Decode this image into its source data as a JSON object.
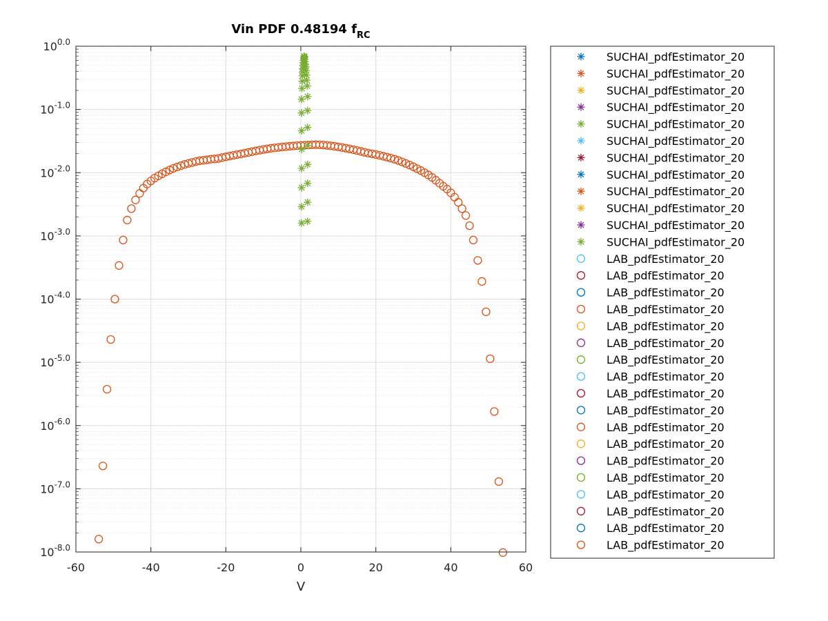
{
  "chart_data": {
    "type": "scatter",
    "title": "Vin PDF 0.48194 f",
    "title_subscript": "RC",
    "xlabel": "V",
    "ylabel": "",
    "xlim": [
      -60,
      60
    ],
    "ylim": [
      1e-08,
      1
    ],
    "yscale": "log",
    "grid": true,
    "minor_grid": true,
    "legend_position": "outside-right",
    "x_ticks": [
      -60,
      -40,
      -20,
      0,
      20,
      40,
      60
    ],
    "x_tick_labels": [
      "-60",
      "-40",
      "-20",
      "0",
      "20",
      "40",
      "60"
    ],
    "y_ticks": [
      {
        "base": "10",
        "exp": "0.0",
        "value": 1
      },
      {
        "base": "10",
        "exp": "-1.0",
        "value": 0.1
      },
      {
        "base": "10",
        "exp": "-2.0",
        "value": 0.01
      },
      {
        "base": "10",
        "exp": "-3.0",
        "value": 0.001
      },
      {
        "base": "10",
        "exp": "-4.0",
        "value": 0.0001
      },
      {
        "base": "10",
        "exp": "-5.0",
        "value": 1e-05
      },
      {
        "base": "10",
        "exp": "-6.0",
        "value": 1e-06
      },
      {
        "base": "10",
        "exp": "-7.0",
        "value": 1e-07
      },
      {
        "base": "10",
        "exp": "-8.0",
        "value": 1e-08
      }
    ],
    "legend": [
      {
        "label": "SUCHAI_pdfEstimator_20",
        "marker": "star",
        "color": "#0072BD"
      },
      {
        "label": "SUCHAI_pdfEstimator_20",
        "marker": "star",
        "color": "#D95319"
      },
      {
        "label": "SUCHAI_pdfEstimator_20",
        "marker": "star",
        "color": "#EDB120"
      },
      {
        "label": "SUCHAI_pdfEstimator_20",
        "marker": "star",
        "color": "#7E2F8E"
      },
      {
        "label": "SUCHAI_pdfEstimator_20",
        "marker": "star",
        "color": "#77AC30"
      },
      {
        "label": "SUCHAI_pdfEstimator_20",
        "marker": "star",
        "color": "#4DBEEE"
      },
      {
        "label": "SUCHAI_pdfEstimator_20",
        "marker": "star",
        "color": "#A2142F"
      },
      {
        "label": "SUCHAI_pdfEstimator_20",
        "marker": "star",
        "color": "#0072BD"
      },
      {
        "label": "SUCHAI_pdfEstimator_20",
        "marker": "star",
        "color": "#D95319"
      },
      {
        "label": "SUCHAI_pdfEstimator_20",
        "marker": "star",
        "color": "#EDB120"
      },
      {
        "label": "SUCHAI_pdfEstimator_20",
        "marker": "star",
        "color": "#7E2F8E"
      },
      {
        "label": "SUCHAI_pdfEstimator_20",
        "marker": "star",
        "color": "#77AC30"
      },
      {
        "label": "LAB_pdfEstimator_20",
        "marker": "circle",
        "color": "#4DBEEE"
      },
      {
        "label": "LAB_pdfEstimator_20",
        "marker": "circle",
        "color": "#A2142F"
      },
      {
        "label": "LAB_pdfEstimator_20",
        "marker": "circle",
        "color": "#0072BD"
      },
      {
        "label": "LAB_pdfEstimator_20",
        "marker": "circle",
        "color": "#D95319"
      },
      {
        "label": "LAB_pdfEstimator_20",
        "marker": "circle",
        "color": "#EDB120"
      },
      {
        "label": "LAB_pdfEstimator_20",
        "marker": "circle",
        "color": "#7E2F8E"
      },
      {
        "label": "LAB_pdfEstimator_20",
        "marker": "circle",
        "color": "#77AC30"
      },
      {
        "label": "LAB_pdfEstimator_20",
        "marker": "circle",
        "color": "#4DBEEE"
      },
      {
        "label": "LAB_pdfEstimator_20",
        "marker": "circle",
        "color": "#A2142F"
      },
      {
        "label": "LAB_pdfEstimator_20",
        "marker": "circle",
        "color": "#0072BD"
      },
      {
        "label": "LAB_pdfEstimator_20",
        "marker": "circle",
        "color": "#D95319"
      },
      {
        "label": "LAB_pdfEstimator_20",
        "marker": "circle",
        "color": "#EDB120"
      },
      {
        "label": "LAB_pdfEstimator_20",
        "marker": "circle",
        "color": "#7E2F8E"
      },
      {
        "label": "LAB_pdfEstimator_20",
        "marker": "circle",
        "color": "#77AC30"
      },
      {
        "label": "LAB_pdfEstimator_20",
        "marker": "circle",
        "color": "#4DBEEE"
      },
      {
        "label": "LAB_pdfEstimator_20",
        "marker": "circle",
        "color": "#A2142F"
      },
      {
        "label": "LAB_pdfEstimator_20",
        "marker": "circle",
        "color": "#0072BD"
      },
      {
        "label": "LAB_pdfEstimator_20",
        "marker": "circle",
        "color": "#D95319"
      }
    ],
    "series": [
      {
        "marker": "star",
        "color": "#77AC30",
        "points": [
          [
            0.2,
            0.0016
          ],
          [
            1.8,
            0.0017
          ],
          [
            0.2,
            0.0029
          ],
          [
            1.8,
            0.0034
          ],
          [
            0.2,
            0.0058
          ],
          [
            1.8,
            0.0068
          ],
          [
            0.2,
            0.0117
          ],
          [
            1.8,
            0.0135
          ],
          [
            0.2,
            0.0235
          ],
          [
            1.8,
            0.027
          ],
          [
            0.2,
            0.046
          ],
          [
            1.8,
            0.052
          ],
          [
            0.2,
            0.088
          ],
          [
            1.8,
            0.096
          ],
          [
            0.2,
            0.145
          ],
          [
            1.8,
            0.16
          ],
          [
            0.3,
            0.215
          ],
          [
            1.7,
            0.235
          ],
          [
            0.35,
            0.28
          ],
          [
            1.6,
            0.29
          ],
          [
            0.4,
            0.34
          ],
          [
            1.5,
            0.35
          ],
          [
            0.45,
            0.39
          ],
          [
            1.4,
            0.41
          ],
          [
            0.5,
            0.44
          ],
          [
            1.3,
            0.47
          ],
          [
            0.55,
            0.5
          ],
          [
            1.2,
            0.52
          ],
          [
            0.6,
            0.55
          ],
          [
            1.1,
            0.57
          ],
          [
            0.7,
            0.6
          ],
          [
            1.0,
            0.62
          ],
          [
            0.8,
            0.64
          ],
          [
            0.9,
            0.66
          ],
          [
            1.0,
            0.68
          ],
          [
            0.85,
            0.7
          ]
        ]
      },
      {
        "marker": "circle",
        "color": "#D95319",
        "points": [
          [
            -53.9,
            1.6e-08
          ],
          [
            -52.8,
            2.3e-07
          ],
          [
            -51.7,
            3.75e-06
          ],
          [
            -50.7,
            2.3e-05
          ],
          [
            -49.6,
            0.0001
          ],
          [
            -48.5,
            0.00034
          ],
          [
            -47.4,
            0.00086
          ],
          [
            -46.3,
            0.00178
          ],
          [
            -45.2,
            0.0027
          ],
          [
            -44.1,
            0.0037
          ],
          [
            -43.0,
            0.0047
          ],
          [
            -42.0,
            0.0057
          ],
          [
            -41.0,
            0.0066
          ],
          [
            -40.0,
            0.0074
          ],
          [
            -39.0,
            0.0082
          ],
          [
            -38.0,
            0.0089
          ],
          [
            -37.0,
            0.0096
          ],
          [
            -36.0,
            0.0103
          ],
          [
            -35.0,
            0.011
          ],
          [
            -34.0,
            0.0117
          ],
          [
            -33.0,
            0.0123
          ],
          [
            -32.0,
            0.0129
          ],
          [
            -31.0,
            0.0135
          ],
          [
            -30.0,
            0.014
          ],
          [
            -29.0,
            0.0145
          ],
          [
            -28.0,
            0.015
          ],
          [
            -27.0,
            0.0154
          ],
          [
            -26.0,
            0.0157
          ],
          [
            -25.0,
            0.016
          ],
          [
            -24.0,
            0.0163
          ],
          [
            -23.0,
            0.0165
          ],
          [
            -22.0,
            0.0168
          ],
          [
            -21.0,
            0.0173
          ],
          [
            -20.0,
            0.0178
          ],
          [
            -19.0,
            0.0183
          ],
          [
            -18.0,
            0.0188
          ],
          [
            -17.0,
            0.0193
          ],
          [
            -16.0,
            0.0198
          ],
          [
            -15.0,
            0.0203
          ],
          [
            -14.0,
            0.0209
          ],
          [
            -13.0,
            0.0215
          ],
          [
            -12.0,
            0.0221
          ],
          [
            -11.0,
            0.0227
          ],
          [
            -10.0,
            0.0233
          ],
          [
            -9.0,
            0.0238
          ],
          [
            -8.0,
            0.0243
          ],
          [
            -7.0,
            0.0247
          ],
          [
            -6.0,
            0.0251
          ],
          [
            -5.0,
            0.0255
          ],
          [
            -4.0,
            0.0258
          ],
          [
            -3.0,
            0.0262
          ],
          [
            -2.0,
            0.0265
          ],
          [
            -1.0,
            0.0268
          ],
          [
            0.0,
            0.027
          ],
          [
            1.0,
            0.0272
          ],
          [
            2.0,
            0.0274
          ],
          [
            3.0,
            0.0276
          ],
          [
            4.0,
            0.0277
          ],
          [
            5.0,
            0.0276
          ],
          [
            6.0,
            0.0274
          ],
          [
            7.0,
            0.027
          ],
          [
            8.0,
            0.0266
          ],
          [
            9.0,
            0.0261
          ],
          [
            10.0,
            0.0256
          ],
          [
            11.0,
            0.025
          ],
          [
            12.0,
            0.0244
          ],
          [
            13.0,
            0.0238
          ],
          [
            14.0,
            0.0231
          ],
          [
            15.0,
            0.0224
          ],
          [
            16.0,
            0.0217
          ],
          [
            17.0,
            0.021
          ],
          [
            18.0,
            0.0204
          ],
          [
            19.0,
            0.0199
          ],
          [
            20.0,
            0.0194
          ],
          [
            21.0,
            0.0188
          ],
          [
            22.0,
            0.0182
          ],
          [
            23.0,
            0.0176
          ],
          [
            24.0,
            0.017
          ],
          [
            25.0,
            0.0163
          ],
          [
            26.0,
            0.0156
          ],
          [
            27.0,
            0.0148
          ],
          [
            28.0,
            0.014
          ],
          [
            29.0,
            0.0132
          ],
          [
            30.0,
            0.0124
          ],
          [
            31.0,
            0.0116
          ],
          [
            32.0,
            0.0108
          ],
          [
            33.0,
            0.01
          ],
          [
            34.0,
            0.0092
          ],
          [
            35.0,
            0.0084
          ],
          [
            36.0,
            0.0076
          ],
          [
            37.0,
            0.0068
          ],
          [
            38.0,
            0.0061
          ],
          [
            39.0,
            0.0055
          ],
          [
            40.0,
            0.0048
          ],
          [
            41.0,
            0.0041
          ],
          [
            42.0,
            0.0034
          ],
          [
            43.0,
            0.0027
          ],
          [
            44.0,
            0.0021
          ],
          [
            45.0,
            0.00145
          ],
          [
            46.0,
            0.00086
          ],
          [
            47.2,
            0.00041
          ],
          [
            48.3,
            0.00019
          ],
          [
            49.4,
            6.3e-05
          ],
          [
            50.5,
            1.14e-05
          ],
          [
            51.6,
            1.67e-06
          ],
          [
            52.8,
            1.3e-07
          ],
          [
            53.9,
            9.8e-09
          ]
        ]
      }
    ]
  }
}
